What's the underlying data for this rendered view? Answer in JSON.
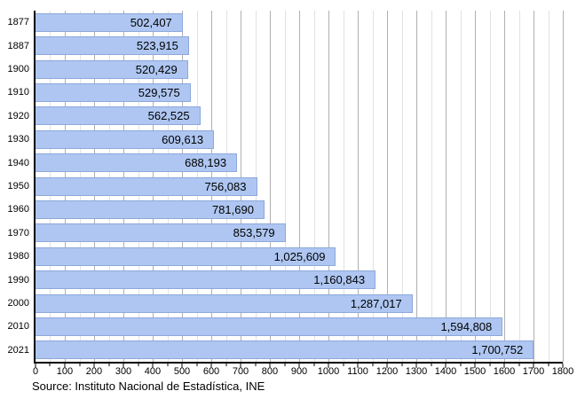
{
  "chart_data": {
    "type": "bar",
    "orientation": "horizontal",
    "title": "",
    "xlabel": "",
    "ylabel": "",
    "categories": [
      "1877",
      "1887",
      "1900",
      "1910",
      "1920",
      "1930",
      "1940",
      "1950",
      "1960",
      "1970",
      "1980",
      "1990",
      "2000",
      "2010",
      "2021"
    ],
    "values": [
      502407,
      523915,
      520429,
      529575,
      562525,
      609613,
      688193,
      756083,
      781690,
      853579,
      1025609,
      1160843,
      1287017,
      1594808,
      1700752
    ],
    "value_labels": [
      "502,407",
      "523,915",
      "520,429",
      "529,575",
      "562,525",
      "609,613",
      "688,193",
      "756,083",
      "781,690",
      "853,579",
      "1,025,609",
      "1,160,843",
      "1,287,017",
      "1,594,808",
      "1,700,752"
    ],
    "xlim": [
      0,
      1800000
    ],
    "x_major_step": 100000,
    "x_minor_step": 50000,
    "x_tick_labels": [
      "0",
      "100",
      "200",
      "300",
      "400",
      "500",
      "600",
      "700",
      "800",
      "900",
      "1000",
      "1100",
      "1200",
      "1300",
      "1400",
      "1500",
      "1600",
      "1700",
      "1800"
    ],
    "grid": "vertical, minor and major lines, behind bars",
    "legend": "none"
  },
  "source_note": "Source: Instituto Nacional de Estadística, INE",
  "colors": {
    "background": "#ffffff",
    "text": "#000000",
    "axis": "#000000",
    "bar_fill": "#aec6f1",
    "bar_border": "#8da8da",
    "grid_major": "#b0b0b0",
    "grid_minor": "#e2e2e2"
  }
}
